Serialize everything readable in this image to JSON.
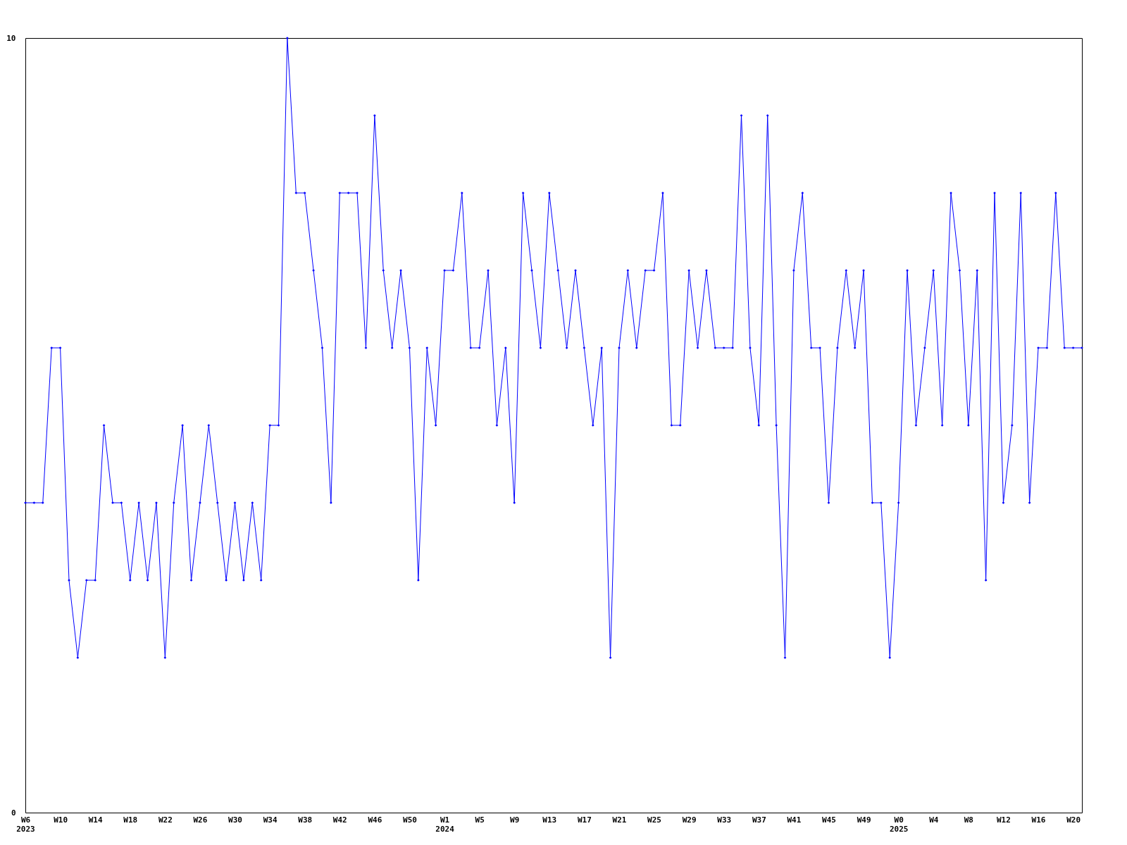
{
  "chart_data": {
    "type": "line",
    "categories": [
      "W6\n2023",
      null,
      null,
      null,
      "W10",
      null,
      null,
      null,
      "W14",
      null,
      null,
      null,
      "W18",
      null,
      null,
      null,
      "W22",
      null,
      null,
      null,
      "W26",
      null,
      null,
      null,
      "W30",
      null,
      null,
      null,
      "W34",
      null,
      null,
      null,
      "W38",
      null,
      null,
      null,
      "W42",
      null,
      null,
      null,
      "W46",
      null,
      null,
      null,
      "W50",
      null,
      null,
      null,
      "W1\n2024",
      null,
      null,
      null,
      "W5",
      null,
      null,
      null,
      "W9",
      null,
      null,
      null,
      "W13",
      null,
      null,
      null,
      "W17",
      null,
      null,
      null,
      "W21",
      null,
      null,
      null,
      "W25",
      null,
      null,
      null,
      "W29",
      null,
      null,
      null,
      "W33",
      null,
      null,
      null,
      "W37",
      null,
      null,
      null,
      "W41",
      null,
      null,
      null,
      "W45",
      null,
      null,
      null,
      "W49",
      null,
      null,
      null,
      "W0\n2025",
      null,
      null,
      null,
      "W4",
      null,
      null,
      null,
      "W8",
      null,
      null,
      null,
      "W12",
      null,
      null,
      null,
      "W16",
      null,
      null,
      null,
      "W20",
      null
    ],
    "series": [
      {
        "color": "#0000ff",
        "values": [
          4,
          4,
          4,
          6,
          6,
          3,
          2,
          3,
          3,
          5,
          4,
          4,
          3,
          4,
          3,
          4,
          2,
          4,
          5,
          3,
          4,
          5,
          4,
          3,
          4,
          3,
          4,
          3,
          5,
          5,
          10,
          8,
          8,
          7,
          6,
          4,
          8,
          8,
          8,
          6,
          9,
          7,
          6,
          7,
          6,
          3,
          6,
          5,
          7,
          7,
          8,
          6,
          6,
          7,
          5,
          6,
          4,
          8,
          7,
          6,
          8,
          7,
          6,
          7,
          6,
          5,
          6,
          2,
          6,
          7,
          6,
          7,
          7,
          8,
          5,
          5,
          7,
          6,
          7,
          6,
          6,
          6,
          9,
          6,
          5,
          9,
          5,
          2,
          7,
          8,
          6,
          6,
          4,
          6,
          7,
          6,
          7,
          4,
          4,
          2,
          4,
          7,
          5,
          6,
          7,
          5,
          8,
          7,
          5,
          7,
          3,
          8,
          4,
          5,
          8,
          4,
          6,
          6,
          8,
          6,
          6,
          6
        ]
      }
    ],
    "ylim": [
      0,
      10
    ],
    "yticks": [
      0,
      10
    ],
    "grid": false,
    "marker": "diamond",
    "line_style": "solid"
  }
}
